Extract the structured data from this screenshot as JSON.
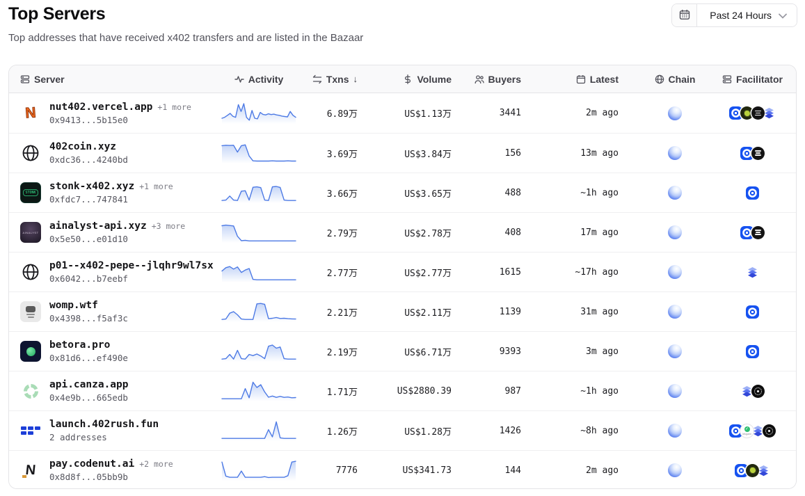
{
  "page": {
    "title": "Top Servers",
    "subtitle": "Top addresses that have received x402 transfers and are listed in the Bazaar"
  },
  "controls": {
    "calendar_icon": "calendar-icon",
    "range_label": "Past 24 Hours",
    "chevron_icon": "chevron-down-icon"
  },
  "theme": {
    "accent_blue": "#1652f0",
    "sparkline_blue": "#5b87e8",
    "chain_sphere_blue": "#2f55e0",
    "header_bg": "#f9f9fa",
    "border": "#e4e4e7"
  },
  "table": {
    "columns": [
      {
        "id": "server",
        "label": "Server",
        "icon": "server-icon",
        "align": "left",
        "sort": null
      },
      {
        "id": "activity",
        "label": "Activity",
        "icon": "activity-icon",
        "align": "center",
        "sort": null
      },
      {
        "id": "txns",
        "label": "Txns",
        "icon": "swap-icon",
        "align": "right",
        "sort": "desc"
      },
      {
        "id": "volume",
        "label": "Volume",
        "icon": "dollar-icon",
        "align": "right",
        "sort": null
      },
      {
        "id": "buyers",
        "label": "Buyers",
        "icon": "users-icon",
        "align": "right",
        "sort": null
      },
      {
        "id": "latest",
        "label": "Latest",
        "icon": "calendar-icon",
        "align": "right",
        "sort": null
      },
      {
        "id": "chain",
        "label": "Chain",
        "icon": "globe-icon",
        "align": "center",
        "sort": null
      },
      {
        "id": "facilitator",
        "label": "Facilitator",
        "icon": "server-icon",
        "align": "center",
        "sort": null
      }
    ],
    "rows": [
      {
        "name": "nut402.vercel.app",
        "more": "+1 more",
        "address": "0x9413...5b15e0",
        "txns": "6.89万",
        "volume": "US$1.13万",
        "buyers": "3441",
        "latest": "2m ago",
        "chain": "base",
        "avatar": "letter-n-orange",
        "facilitators": [
          "coinbase",
          "tree",
          "black-disc",
          "layers"
        ],
        "spark": [
          25,
          30,
          40,
          50,
          35,
          30,
          95,
          60,
          100,
          30,
          15,
          65,
          25,
          22,
          55,
          45,
          42,
          48,
          44,
          46,
          42,
          40,
          36,
          34,
          32,
          60,
          40,
          30
        ]
      },
      {
        "name": "402coin.xyz",
        "more": "",
        "address": "0xdc36...4240bd",
        "txns": "3.69万",
        "volume": "US$3.84万",
        "buyers": "156",
        "latest": "13m ago",
        "chain": "base",
        "avatar": "globe",
        "facilitators": [
          "coinbase",
          "black-disc"
        ],
        "spark": [
          88,
          90,
          89,
          90,
          55,
          88,
          92,
          35,
          10,
          9,
          9,
          9,
          9,
          10,
          9,
          9,
          9,
          10,
          9,
          9
        ]
      },
      {
        "name": "stonk-x402.xyz",
        "more": "+1 more",
        "address": "0xfdc7...747841",
        "txns": "3.66万",
        "volume": "US$3.65万",
        "buyers": "488",
        "latest": "~1h ago",
        "chain": "base",
        "avatar": "stonk-card",
        "facilitators": [
          "coinbase"
        ],
        "spark": [
          10,
          12,
          33,
          12,
          10,
          58,
          60,
          12,
          78,
          80,
          76,
          12,
          10,
          80,
          82,
          77,
          12,
          10,
          10,
          10
        ]
      },
      {
        "name": "ainalyst-api.xyz",
        "more": "+3 more",
        "address": "0x5e50...e01d10",
        "txns": "2.79万",
        "volume": "US$2.78万",
        "buyers": "408",
        "latest": "17m ago",
        "chain": "base",
        "avatar": "ainalyst-card",
        "facilitators": [
          "coinbase",
          "black-disc"
        ],
        "spark": [
          84,
          87,
          85,
          83,
          30,
          7,
          9,
          6,
          6,
          6,
          6,
          6,
          6,
          6,
          6,
          6,
          6,
          6,
          6,
          6
        ]
      },
      {
        "name": "p01--x402-pepe--jlqhr9wl7sx",
        "more": "",
        "address": "0x6042...b7eebf",
        "txns": "2.77万",
        "volume": "US$2.77万",
        "buyers": "1615",
        "latest": "~17h ago",
        "chain": "base",
        "avatar": "globe",
        "facilitators": [
          "layers"
        ],
        "spark": [
          55,
          72,
          78,
          65,
          76,
          48,
          60,
          68,
          12,
          10,
          10,
          10,
          10,
          10,
          10,
          10,
          10,
          10,
          10,
          10
        ]
      },
      {
        "name": "womp.wtf",
        "more": "",
        "address": "0x4398...f5af3c",
        "txns": "2.21万",
        "volume": "US$2.11万",
        "buyers": "1139",
        "latest": "31m ago",
        "chain": "base",
        "avatar": "womp-card",
        "facilitators": [
          "coinbase"
        ],
        "spark": [
          10,
          12,
          42,
          50,
          34,
          12,
          10,
          10,
          10,
          90,
          92,
          88,
          14,
          16,
          20,
          15,
          16,
          14,
          13,
          12
        ]
      },
      {
        "name": "betora.pro",
        "more": "",
        "address": "0x81d6...ef490e",
        "txns": "2.19万",
        "volume": "US$6.71万",
        "buyers": "9393",
        "latest": "3m ago",
        "chain": "base",
        "avatar": "betora-card",
        "facilitators": [
          "coinbase"
        ],
        "spark": [
          10,
          12,
          34,
          10,
          55,
          12,
          10,
          34,
          28,
          36,
          26,
          12,
          76,
          82,
          66,
          72,
          12,
          10,
          10,
          10
        ]
      },
      {
        "name": "api.canza.app",
        "more": "",
        "address": "0x4e9b...665edb",
        "txns": "1.71万",
        "volume": "US$2880.39",
        "buyers": "987",
        "latest": "~1h ago",
        "chain": "base",
        "avatar": "canza-ring",
        "facilitators": [
          "layers",
          "ornate"
        ],
        "spark": [
          10,
          10,
          10,
          10,
          10,
          10,
          62,
          15,
          95,
          68,
          82,
          45,
          18,
          24,
          17,
          22,
          17,
          19,
          15,
          16
        ]
      },
      {
        "name": "launch.402rush.fun",
        "more": "",
        "address": "2 addresses",
        "txns": "1.26万",
        "volume": "US$1.28万",
        "buyers": "1426",
        "latest": "~8h ago",
        "chain": "base",
        "avatar": "pixel-flag",
        "facilitators": [
          "coinbase",
          "mogami",
          "layers",
          "ornate"
        ],
        "spark": [
          10,
          10,
          10,
          10,
          10,
          10,
          10,
          10,
          10,
          10,
          10,
          10,
          55,
          18,
          95,
          13,
          10,
          10,
          10,
          10
        ]
      },
      {
        "name": "pay.codenut.ai",
        "more": "+2 more",
        "address": "0x8d8f...05bb9b",
        "txns": "7776",
        "volume": "US$341.73",
        "buyers": "144",
        "latest": "2m ago",
        "chain": "base",
        "avatar": "letter-n-black",
        "facilitators": [
          "coinbase",
          "tree",
          "layers"
        ],
        "spark": [
          92,
          20,
          14,
          14,
          14,
          46,
          14,
          14,
          14,
          14,
          14,
          17,
          13,
          14,
          14,
          14,
          14,
          22,
          92,
          96
        ]
      }
    ]
  }
}
